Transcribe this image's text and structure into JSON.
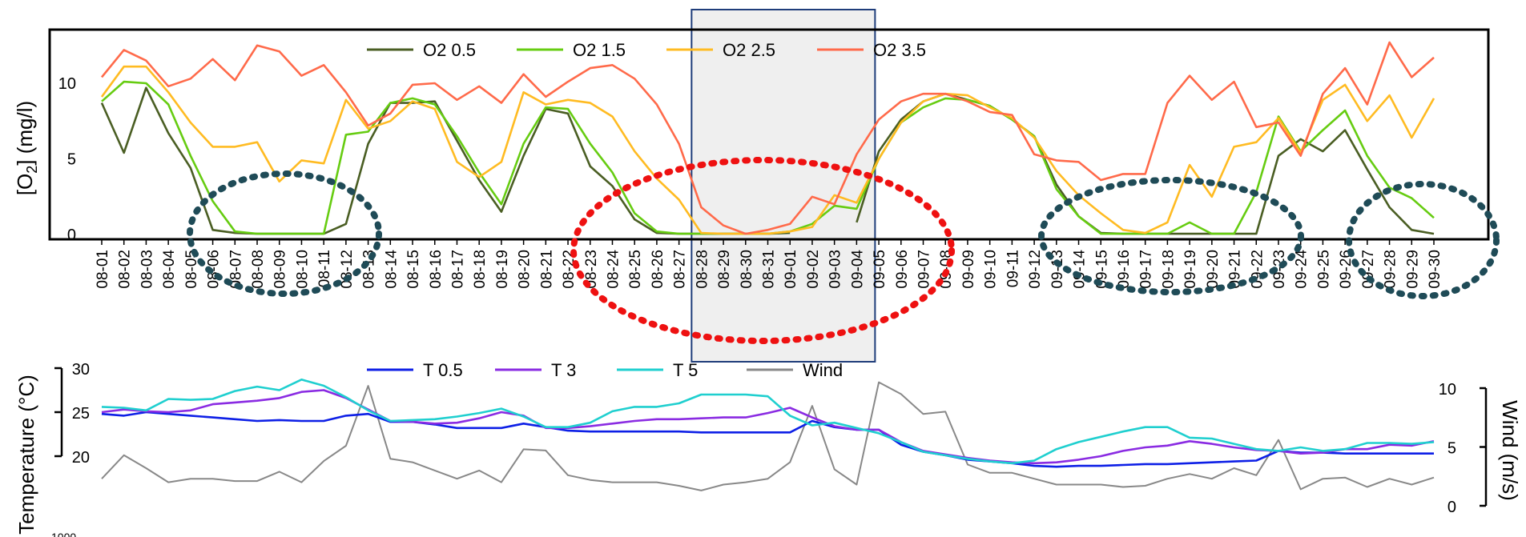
{
  "chart_data": [
    {
      "type": "line",
      "ylabel": "[O₂] (mg/l)",
      "ylabel_main": "[O",
      "ylabel_sub": "2",
      "ylabel_rest": "] (mg/l)",
      "ylim": [
        0,
        13
      ],
      "yticks": [
        "0",
        "5",
        "10"
      ],
      "x": [
        "08-01",
        "08-02",
        "08-03",
        "08-04",
        "08-05",
        "08-06",
        "08-07",
        "08-08",
        "08-09",
        "08-10",
        "08-11",
        "08-12",
        "08-13",
        "08-14",
        "08-15",
        "08-16",
        "08-17",
        "08-18",
        "08-19",
        "08-20",
        "08-21",
        "08-22",
        "08-23",
        "08-24",
        "08-25",
        "08-26",
        "08-27",
        "08-28",
        "08-29",
        "08-30",
        "08-31",
        "09-01",
        "09-02",
        "09-03",
        "09-04",
        "09-05",
        "09-06",
        "09-07",
        "09-08",
        "09-09",
        "09-10",
        "09-11",
        "09-12",
        "09-13",
        "09-14",
        "09-15",
        "09-16",
        "09-17",
        "09-18",
        "09-19",
        "09-20",
        "09-21",
        "09-22",
        "09-23",
        "09-24",
        "09-25",
        "09-26",
        "09-27",
        "09-28",
        "09-29",
        "09-30"
      ],
      "series": [
        {
          "name": "O2 0.5",
          "color": "#4a5e23",
          "values": [
            8.7,
            5.4,
            9.7,
            6.7,
            4.4,
            0.3,
            0.1,
            0.05,
            0.05,
            0.05,
            0.05,
            0.7,
            6.0,
            8.7,
            8.7,
            8.8,
            6.2,
            3.6,
            1.5,
            5.2,
            8.3,
            8.0,
            4.5,
            3.2,
            1.0,
            0.1,
            0.05,
            0.05,
            0.05,
            0.05,
            0.05,
            0.1,
            null,
            null,
            0.8,
            5.5,
            7.6,
            8.8,
            9.3,
            8.9,
            8.5,
            7.6,
            6.5,
            3.3,
            1.2,
            0.1,
            0.05,
            0.05,
            0.05,
            0.05,
            0.05,
            0.05,
            0.05,
            5.2,
            6.3,
            5.5,
            6.9,
            4.3,
            1.8,
            0.3,
            0.05
          ]
        },
        {
          "name": "O2 1.5",
          "color": "#66cc11",
          "values": [
            8.8,
            10.1,
            10.0,
            8.6,
            5.2,
            2.2,
            0.2,
            0.05,
            0.05,
            0.05,
            0.05,
            6.6,
            6.8,
            8.7,
            9.0,
            8.6,
            6.5,
            4.1,
            2.0,
            6.0,
            8.4,
            8.3,
            6.0,
            4.1,
            1.4,
            0.2,
            0.05,
            0.05,
            0.05,
            0.05,
            0.05,
            0.2,
            0.7,
            1.9,
            1.7,
            5.0,
            7.4,
            8.4,
            9.0,
            8.9,
            8.5,
            7.6,
            6.5,
            3.0,
            1.2,
            0.05,
            0.05,
            0.05,
            0.05,
            0.8,
            0.05,
            0.05,
            2.8,
            7.8,
            5.5,
            6.9,
            8.2,
            5.2,
            3.1,
            2.4,
            1.1
          ]
        },
        {
          "name": "O2 2.5",
          "color": "#ffbb22",
          "values": [
            9.1,
            11.1,
            11.1,
            9.4,
            7.4,
            5.8,
            5.8,
            6.1,
            3.5,
            4.9,
            4.7,
            8.9,
            7.0,
            7.5,
            8.8,
            8.3,
            4.8,
            3.8,
            4.8,
            9.4,
            8.6,
            8.9,
            8.7,
            7.8,
            5.5,
            3.7,
            2.3,
            0.1,
            0.05,
            0.05,
            0.05,
            0.2,
            0.5,
            2.6,
            2.1,
            5.0,
            7.4,
            8.8,
            9.3,
            9.2,
            8.4,
            7.7,
            6.4,
            4.2,
            2.6,
            1.4,
            0.3,
            0.1,
            0.8,
            4.6,
            2.5,
            5.8,
            6.1,
            7.7,
            5.4,
            8.9,
            9.9,
            7.5,
            9.2,
            6.4,
            9.0
          ]
        },
        {
          "name": "O2 3.5",
          "color": "#ff6a4a",
          "values": [
            10.4,
            12.2,
            11.5,
            9.8,
            10.3,
            11.6,
            10.2,
            12.5,
            12.1,
            10.5,
            11.2,
            9.4,
            7.2,
            8.0,
            9.9,
            10.0,
            8.9,
            9.8,
            8.7,
            10.6,
            9.1,
            10.1,
            11.0,
            11.2,
            10.3,
            8.6,
            6.0,
            1.8,
            0.6,
            0.05,
            0.3,
            0.7,
            2.5,
            2.0,
            5.3,
            7.6,
            8.8,
            9.3,
            9.3,
            8.8,
            8.1,
            7.9,
            5.3,
            4.9,
            4.8,
            3.6,
            4.0,
            4.0,
            8.7,
            10.5,
            8.9,
            10.1,
            7.1,
            7.4,
            5.2,
            9.3,
            11.0,
            8.6,
            12.7,
            10.4,
            11.7
          ]
        }
      ],
      "legend_placement": "top",
      "grid": false
    },
    {
      "type": "line",
      "ylabel": "Temperature (°C)",
      "ylabel_right": "Wind (m/s)",
      "ylim": [
        20,
        30
      ],
      "ylim_right": [
        0,
        10
      ],
      "yticks": [
        "20",
        "25",
        "30"
      ],
      "yticks_right": [
        "0",
        "5",
        "10"
      ],
      "x": [
        "08-01",
        "08-02",
        "08-03",
        "08-04",
        "08-05",
        "08-06",
        "08-07",
        "08-08",
        "08-09",
        "08-10",
        "08-11",
        "08-12",
        "08-13",
        "08-14",
        "08-15",
        "08-16",
        "08-17",
        "08-18",
        "08-19",
        "08-20",
        "08-21",
        "08-22",
        "08-23",
        "08-24",
        "08-25",
        "08-26",
        "08-27",
        "08-28",
        "08-29",
        "08-30",
        "08-31",
        "09-01",
        "09-02",
        "09-03",
        "09-04",
        "09-05",
        "09-06",
        "09-07",
        "09-08",
        "09-09",
        "09-10",
        "09-11",
        "09-12",
        "09-13",
        "09-14",
        "09-15",
        "09-16",
        "09-17",
        "09-18",
        "09-19",
        "09-20",
        "09-21",
        "09-22",
        "09-23",
        "09-24",
        "09-25",
        "09-26",
        "09-27",
        "09-28",
        "09-29",
        "09-30"
      ],
      "series": [
        {
          "name": "T 0.5",
          "color": "#0d1fe6",
          "axis": "left",
          "values": [
            24.8,
            24.6,
            25.0,
            24.8,
            24.6,
            24.4,
            24.2,
            24.0,
            24.1,
            24.0,
            24.0,
            24.6,
            24.8,
            23.9,
            23.9,
            23.6,
            23.2,
            23.2,
            23.2,
            23.7,
            23.3,
            22.9,
            22.8,
            22.8,
            22.8,
            22.8,
            22.8,
            22.7,
            22.7,
            22.7,
            22.7,
            22.7,
            24.0,
            23.3,
            23.0,
            23.0,
            21.3,
            20.5,
            20.1,
            19.6,
            19.4,
            19.2,
            18.9,
            18.8,
            18.9,
            18.9,
            19.0,
            19.1,
            19.1,
            19.2,
            19.3,
            19.4,
            19.5,
            20.6,
            20.4,
            20.4,
            20.3,
            20.3,
            20.3,
            20.3,
            20.3
          ]
        },
        {
          "name": "T 3",
          "color": "#8a2be2",
          "axis": "left",
          "values": [
            25.0,
            25.3,
            25.1,
            25.0,
            25.2,
            25.9,
            26.1,
            26.3,
            26.6,
            27.3,
            27.5,
            26.6,
            25.3,
            24.0,
            23.9,
            23.7,
            23.8,
            24.3,
            25.0,
            24.6,
            23.2,
            23.2,
            23.4,
            23.7,
            24.0,
            24.2,
            24.2,
            24.3,
            24.4,
            24.4,
            24.9,
            25.5,
            24.4,
            23.4,
            23.0,
            23.0,
            21.6,
            20.6,
            20.2,
            19.8,
            19.5,
            19.3,
            19.2,
            19.3,
            19.6,
            20.0,
            20.6,
            21.0,
            21.2,
            21.7,
            21.4,
            21.0,
            20.7,
            20.6,
            20.3,
            20.4,
            20.8,
            20.8,
            21.3,
            21.2,
            21.7
          ]
        },
        {
          "name": "T 5",
          "color": "#1fcfcf",
          "axis": "left",
          "values": [
            25.6,
            25.5,
            25.2,
            26.5,
            26.4,
            26.5,
            27.4,
            27.9,
            27.5,
            28.7,
            28.0,
            26.7,
            25.2,
            24.0,
            24.1,
            24.2,
            24.5,
            24.9,
            25.4,
            24.5,
            23.3,
            23.3,
            23.8,
            25.1,
            25.6,
            25.6,
            26.0,
            27.0,
            27.0,
            27.0,
            26.8,
            24.6,
            23.5,
            23.8,
            23.2,
            22.6,
            21.6,
            20.5,
            20.1,
            19.7,
            19.4,
            19.2,
            19.5,
            20.8,
            21.6,
            22.2,
            22.8,
            23.3,
            23.3,
            22.1,
            22.0,
            21.4,
            20.8,
            20.6,
            21.0,
            20.6,
            20.8,
            21.5,
            21.5,
            21.4,
            21.6
          ]
        },
        {
          "name": "Wind",
          "color": "#888888",
          "axis": "right",
          "values": [
            2.3,
            4.3,
            3.2,
            2.0,
            2.3,
            2.3,
            2.1,
            2.1,
            2.9,
            2.0,
            3.8,
            5.1,
            10.2,
            4.0,
            3.7,
            3.0,
            2.3,
            3.0,
            2.0,
            4.8,
            4.7,
            2.6,
            2.2,
            2.0,
            2.0,
            2.0,
            1.7,
            1.3,
            1.8,
            2.0,
            2.3,
            3.7,
            8.5,
            3.1,
            1.8,
            10.5,
            9.5,
            7.8,
            8.0,
            3.5,
            2.8,
            2.8,
            2.3,
            1.8,
            1.8,
            1.8,
            1.6,
            1.7,
            2.3,
            2.7,
            2.3,
            3.2,
            2.6,
            5.6,
            1.4,
            2.3,
            2.4,
            1.6,
            2.3,
            1.8,
            2.4
          ]
        }
      ],
      "legend_placement": "top",
      "grid": false
    }
  ],
  "annotations": {
    "highlight_box": {
      "from": "08-28",
      "to": "09-04",
      "fill": "#ebebeb",
      "stroke": "#1f3d7a"
    },
    "dark_ellipse_color": "#1f4b57",
    "red_ellipse_color": "#ee1111"
  },
  "partial_text": "1000"
}
